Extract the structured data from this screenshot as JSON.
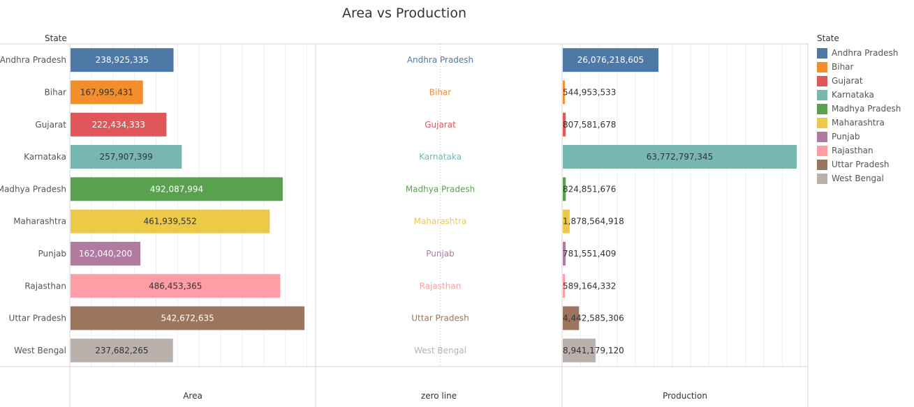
{
  "chart_data": {
    "type": "bar",
    "title": "Area vs Production",
    "rows_header": "State",
    "categories": [
      "Andhra Pradesh",
      "Bihar",
      "Gujarat",
      "Karnataka",
      "Madhya Pradesh",
      "Maharashtra",
      "Punjab",
      "Rajasthan",
      "Uttar Pradesh",
      "West Bengal"
    ],
    "colors": [
      "#4e79a7",
      "#f28e2b",
      "#e15759",
      "#76b7b2",
      "#59a14f",
      "#edc948",
      "#b07aa1",
      "#ff9da7",
      "#9c755f",
      "#bab0ac"
    ],
    "label_colors": [
      "#ffffff",
      "#333333",
      "#ffffff",
      "#333333",
      "#ffffff",
      "#333333",
      "#ffffff",
      "#333333",
      "#ffffff",
      "#333333"
    ],
    "series": [
      {
        "name": "Area",
        "values": [
          238925335,
          167995431,
          222434333,
          257907399,
          492087994,
          461939552,
          162040200,
          486453365,
          542672635,
          237682265
        ],
        "labels": [
          "238,925,335",
          "167,995,431",
          "222,434,333",
          "257,907,399",
          "492,087,994",
          "461,939,552",
          "162,040,200",
          "486,453,365",
          "542,672,635",
          "237,682,265"
        ],
        "xlim": [
          0,
          570000000
        ]
      },
      {
        "name": "zero line",
        "values": [
          0,
          0,
          0,
          0,
          0,
          0,
          0,
          0,
          0,
          0
        ]
      },
      {
        "name": "Production",
        "values": [
          26076218605,
          544953533,
          807581678,
          63772797345,
          824851676,
          1878564918,
          781551409,
          589164332,
          4442585306,
          8941179120
        ],
        "labels": [
          "26,076,218,605",
          "544,953,533",
          "807,581,678",
          "63,772,797,345",
          "824,851,676",
          "1,878,564,918",
          "781,551,409",
          "589,164,332",
          "4,442,585,306",
          "8,941,179,120"
        ],
        "xlim": [
          0,
          67000000000
        ]
      }
    ],
    "legend": {
      "title": "State",
      "position": "right",
      "items": [
        "Andhra Pradesh",
        "Bihar",
        "Gujarat",
        "Karnataka",
        "Madhya Pradesh",
        "Maharashtra",
        "Punjab",
        "Rajasthan",
        "Uttar Pradesh",
        "West Bengal"
      ]
    },
    "grid": true
  }
}
